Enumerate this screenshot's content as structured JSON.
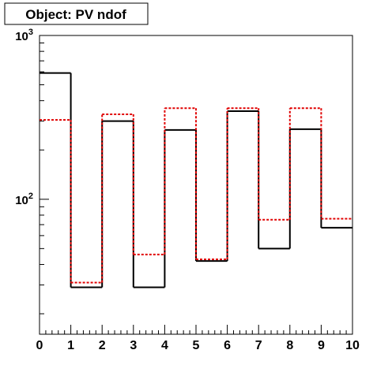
{
  "chart_data": {
    "type": "histogram",
    "title": "Object: PV ndof",
    "xlabel": "",
    "ylabel": "",
    "xlim": [
      0,
      10
    ],
    "ylim": [
      15,
      1000
    ],
    "y_scale": "log",
    "x_ticks": [
      "0",
      "1",
      "2",
      "3",
      "4",
      "5",
      "6",
      "7",
      "8",
      "9",
      "10"
    ],
    "y_tick_labels": [
      {
        "value": 100,
        "base": "10",
        "exp": "2"
      },
      {
        "value": 1000,
        "base": "10",
        "exp": "3"
      }
    ],
    "bin_edges": [
      0,
      1,
      2,
      3,
      4,
      5,
      6,
      7,
      8,
      9,
      10
    ],
    "series": [
      {
        "style": "solid",
        "color": "#000000",
        "values": [
          590,
          29,
          300,
          29,
          265,
          42,
          345,
          50,
          268,
          67
        ]
      },
      {
        "style": "dashed",
        "color": "#e00000",
        "values": [
          305,
          31,
          330,
          46,
          360,
          43,
          360,
          75,
          360,
          76
        ]
      }
    ],
    "grid": false,
    "legend": "none"
  }
}
